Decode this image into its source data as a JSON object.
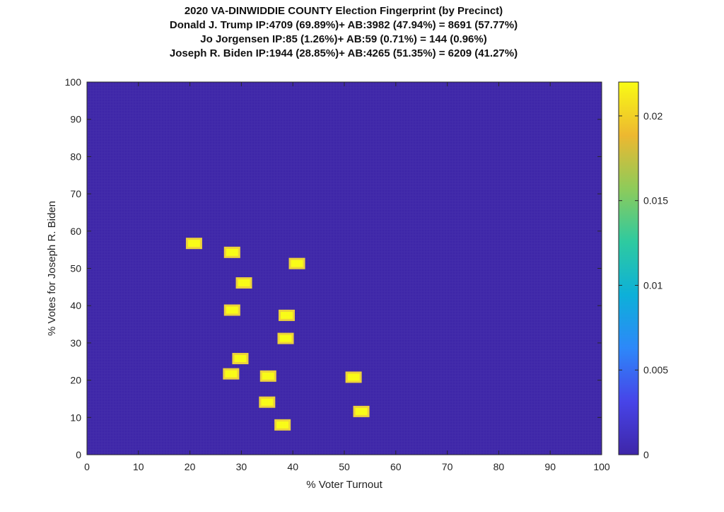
{
  "chart_data": {
    "type": "heatmap",
    "title_lines": [
      "2020 VA-DINWIDDIE COUNTY Election Fingerprint (by Precinct)",
      "Donald J. Trump IP:4709 (69.89%)+ AB:3982 (47.94%) = 8691 (57.77%)",
      "Jo Jorgensen IP:85 (1.26%)+ AB:59 (0.71%) = 144 (0.96%)",
      "Joseph R. Biden IP:1944 (28.85%)+ AB:4265 (51.35%) = 6209 (41.27%)"
    ],
    "xlabel": "% Voter Turnout",
    "ylabel": "% Votes for Joseph R. Biden",
    "xlim": [
      0,
      100
    ],
    "ylim": [
      0,
      100
    ],
    "xticks": [
      "0",
      "10",
      "20",
      "30",
      "40",
      "50",
      "60",
      "70",
      "80",
      "90",
      "100"
    ],
    "yticks": [
      "0",
      "10",
      "20",
      "30",
      "40",
      "50",
      "60",
      "70",
      "80",
      "90",
      "100"
    ],
    "colorbar": {
      "range": [
        0,
        0.022
      ],
      "ticks": [
        "0",
        "0.005",
        "0.01",
        "0.015",
        "0.02"
      ],
      "tick_values": [
        0,
        0.005,
        0.01,
        0.015,
        0.02
      ],
      "colormap": [
        "#3e26a8",
        "#4744e8",
        "#2d88f9",
        "#0db0d9",
        "#2ecaa0",
        "#8ecb5a",
        "#edb830",
        "#f9fb15"
      ]
    },
    "background_color": "#3e26a8",
    "precincts": [
      {
        "x": 20.8,
        "y": 56.7,
        "value": 0.022
      },
      {
        "x": 28.2,
        "y": 54.3,
        "value": 0.022
      },
      {
        "x": 40.8,
        "y": 51.3,
        "value": 0.022
      },
      {
        "x": 30.5,
        "y": 46.1,
        "value": 0.022
      },
      {
        "x": 28.2,
        "y": 38.8,
        "value": 0.022
      },
      {
        "x": 38.8,
        "y": 37.4,
        "value": 0.022
      },
      {
        "x": 38.6,
        "y": 31.2,
        "value": 0.022
      },
      {
        "x": 29.8,
        "y": 25.8,
        "value": 0.022
      },
      {
        "x": 28.0,
        "y": 21.7,
        "value": 0.022
      },
      {
        "x": 35.2,
        "y": 21.1,
        "value": 0.022
      },
      {
        "x": 51.8,
        "y": 20.8,
        "value": 0.022
      },
      {
        "x": 35.0,
        "y": 14.1,
        "value": 0.022
      },
      {
        "x": 53.3,
        "y": 11.6,
        "value": 0.022
      },
      {
        "x": 38.0,
        "y": 8.0,
        "value": 0.022
      }
    ]
  }
}
